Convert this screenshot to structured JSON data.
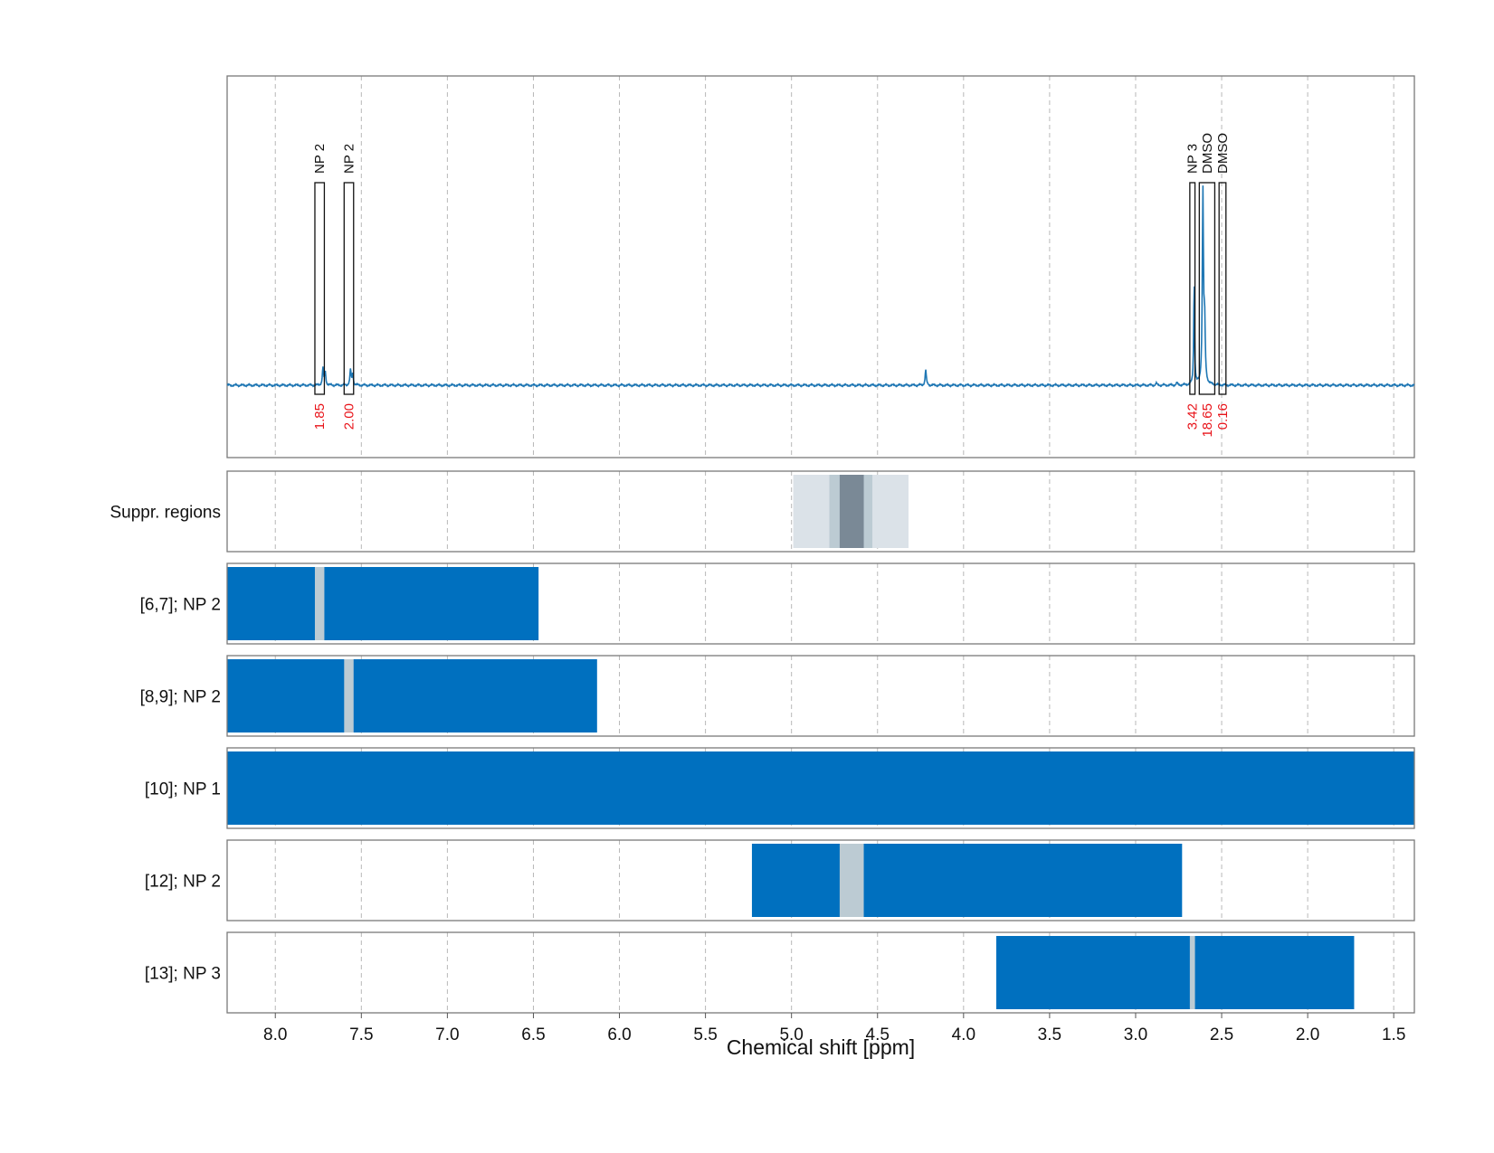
{
  "chart_data": {
    "type": "nmr-spectrum-with-region-bars",
    "xlabel": "Chemical shift [ppm]",
    "x_axis": {
      "reversed": true,
      "range": [
        8.28,
        1.38
      ],
      "ticks": [
        8.0,
        7.5,
        7.0,
        6.5,
        6.0,
        5.5,
        5.0,
        4.5,
        4.0,
        3.5,
        3.0,
        2.5,
        2.0,
        1.5
      ],
      "tick_labels": [
        "8.0",
        "7.5",
        "7.0",
        "6.5",
        "6.0",
        "5.5",
        "5.0",
        "4.5",
        "4.0",
        "3.5",
        "3.0",
        "2.5",
        "2.0",
        "1.5"
      ],
      "grid": true
    },
    "colors": {
      "spectrum": "#1f77b4",
      "region_bar": "#0070bf",
      "overlap_mark": "#bccbd3",
      "suppr_light": "#dbe2e8",
      "suppr_mid": "#bccbd3",
      "suppr_dark": "#7a8996",
      "integral_text": "#e8141a"
    },
    "spectrum": {
      "baseline_level": 0.0,
      "peaks": [
        {
          "x": 7.723,
          "h": 0.09,
          "w": 0.004
        },
        {
          "x": 7.71,
          "h": 0.07,
          "w": 0.004
        },
        {
          "x": 7.563,
          "h": 0.08,
          "w": 0.004
        },
        {
          "x": 7.55,
          "h": 0.06,
          "w": 0.004
        },
        {
          "x": 4.22,
          "h": 0.08,
          "w": 0.004
        },
        {
          "x": 2.66,
          "h": 0.55,
          "w": 0.003
        },
        {
          "x": 2.609,
          "h": 1.0,
          "w": 0.004
        },
        {
          "x": 2.599,
          "h": 0.3,
          "w": 0.004
        },
        {
          "x": 2.88,
          "h": 0.01,
          "w": 0.004
        },
        {
          "x": 2.76,
          "h": 0.012,
          "w": 0.004
        }
      ],
      "peak_boxes": [
        {
          "label": "NP 2",
          "from": 7.77,
          "to": 7.715,
          "integral": "1.85"
        },
        {
          "label": "NP 2",
          "from": 7.6,
          "to": 7.545,
          "integral": "2.00"
        },
        {
          "label": "NP 3",
          "from": 2.685,
          "to": 2.655,
          "integral": "3.42"
        },
        {
          "label": "DMSO",
          "from": 2.63,
          "to": 2.54,
          "integral": "18.65"
        },
        {
          "label": "DMSO",
          "from": 2.515,
          "to": 2.475,
          "integral": "0.16"
        }
      ]
    },
    "rows": [
      {
        "label": "Suppr. regions",
        "type": "suppression",
        "bands": [
          {
            "from": 4.99,
            "to": 4.32,
            "shade": "light"
          },
          {
            "from": 4.78,
            "to": 4.53,
            "shade": "mid"
          },
          {
            "from": 4.72,
            "to": 4.58,
            "shade": "dark"
          }
        ]
      },
      {
        "label": "[6,7]; NP 2",
        "bars": [
          {
            "from": 8.28,
            "to": 6.47
          }
        ],
        "marks": [
          {
            "from": 7.77,
            "to": 7.715
          }
        ]
      },
      {
        "label": "[8,9]; NP 2",
        "bars": [
          {
            "from": 8.28,
            "to": 6.13
          }
        ],
        "marks": [
          {
            "from": 7.6,
            "to": 7.545
          }
        ]
      },
      {
        "label": "[10]; NP 1",
        "bars": [
          {
            "from": 8.28,
            "to": 1.38
          }
        ],
        "marks": []
      },
      {
        "label": "[12]; NP 2",
        "bars": [
          {
            "from": 5.23,
            "to": 2.73
          }
        ],
        "marks": [
          {
            "from": 4.72,
            "to": 4.58
          }
        ]
      },
      {
        "label": "[13]; NP 3",
        "bars": [
          {
            "from": 3.81,
            "to": 1.73
          }
        ],
        "marks": [
          {
            "from": 2.685,
            "to": 2.655
          }
        ]
      }
    ]
  }
}
